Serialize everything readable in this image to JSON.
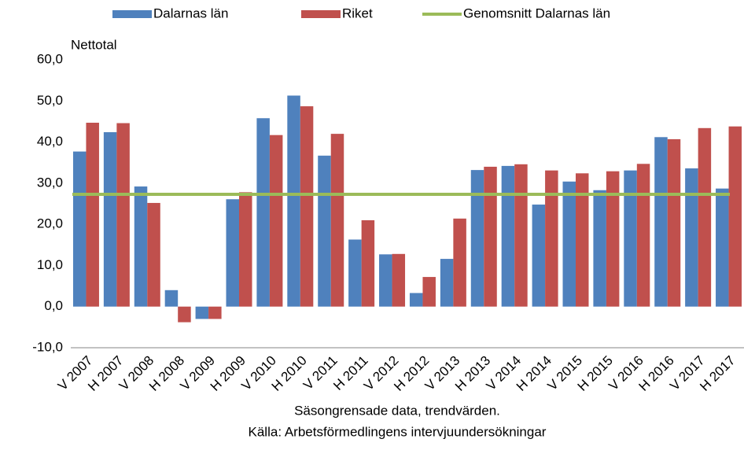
{
  "chart_data": {
    "type": "bar",
    "y_axis_label": "Nettotal",
    "notes": [
      "Säsongrensade data, trendvärden.",
      "Källa: Arbetsförmedlingens intervjuundersökningar"
    ],
    "categories": [
      "V 2007",
      "H 2007",
      "V 2008",
      "H 2008",
      "V 2009",
      "H 2009",
      "V 2010",
      "H 2010",
      "V 2011",
      "H 2011",
      "V 2012",
      "H 2012",
      "V 2013",
      "H 2013",
      "V 2014",
      "H 2014",
      "V 2015",
      "H 2015",
      "V 2016",
      "H 2016",
      "V 2017",
      "H 2017"
    ],
    "series": [
      {
        "name": "Dalarnas län",
        "color": "#4f81bd",
        "values": [
          37.7,
          42.4,
          29.2,
          4.0,
          -3.0,
          26.1,
          45.8,
          51.3,
          36.7,
          16.3,
          12.7,
          3.3,
          11.6,
          33.2,
          34.2,
          24.8,
          30.4,
          28.3,
          33.1,
          41.2,
          33.6,
          28.7
        ]
      },
      {
        "name": "Riket",
        "color": "#c0504d",
        "values": [
          44.7,
          44.6,
          25.2,
          -3.8,
          -3.0,
          27.8,
          41.7,
          48.7,
          42.0,
          21.0,
          12.8,
          7.2,
          21.4,
          34.0,
          34.6,
          33.1,
          32.4,
          32.9,
          34.7,
          40.7,
          43.4,
          43.8
        ]
      }
    ],
    "average": {
      "name": "Genomsnitt Dalarnas län",
      "color": "#9bbb59",
      "value": 27.3
    },
    "ylim": [
      -10,
      60
    ],
    "yticks": [
      {
        "value": -10,
        "label": "-10,0"
      },
      {
        "value": 0,
        "label": "0,0"
      },
      {
        "value": 10,
        "label": "10,0"
      },
      {
        "value": 20,
        "label": "20,0"
      },
      {
        "value": 30,
        "label": "30,0"
      },
      {
        "value": 40,
        "label": "40,0"
      },
      {
        "value": 50,
        "label": "50,0"
      },
      {
        "value": 60,
        "label": "60,0"
      }
    ],
    "grid": false,
    "legend": "top"
  }
}
